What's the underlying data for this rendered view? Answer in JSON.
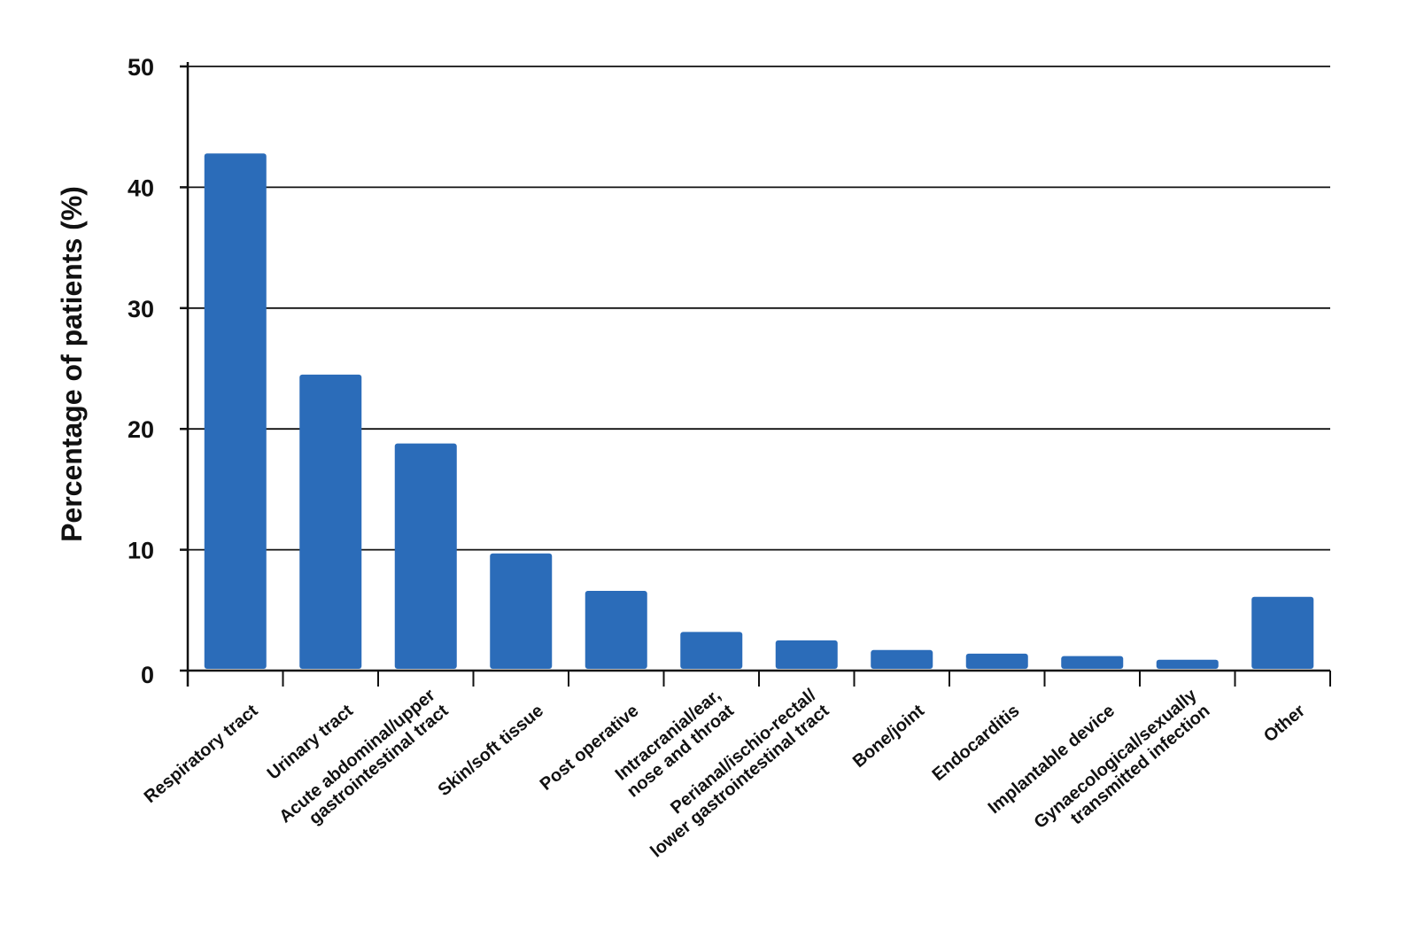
{
  "chart_data": {
    "type": "bar",
    "title": "",
    "xlabel": "",
    "ylabel": "Percentage of patients (%)",
    "ylim": [
      0,
      50
    ],
    "yticks": [
      0,
      10,
      20,
      30,
      40,
      50
    ],
    "grid": true,
    "legend": "none",
    "bar_color": "#2B6CB9",
    "categories": [
      [
        "Respiratory tract"
      ],
      [
        "Urinary tract"
      ],
      [
        "Acute abdominal/upper",
        "gastrointestinal tract"
      ],
      [
        "Skin/soft tissue"
      ],
      [
        "Post operative"
      ],
      [
        "Intracranial/ear,",
        "nose and throat"
      ],
      [
        "Perianal/ischio-rectal/",
        "lower gastrointestinal tract"
      ],
      [
        "Bone/joint"
      ],
      [
        "Endocarditis"
      ],
      [
        "Implantable device"
      ],
      [
        "Gynaecological/sexually",
        "transmitted infection"
      ],
      [
        "Other"
      ]
    ],
    "values": [
      42.8,
      24.5,
      18.8,
      9.7,
      6.6,
      3.2,
      2.5,
      1.7,
      1.4,
      1.2,
      0.9,
      6.1
    ]
  }
}
